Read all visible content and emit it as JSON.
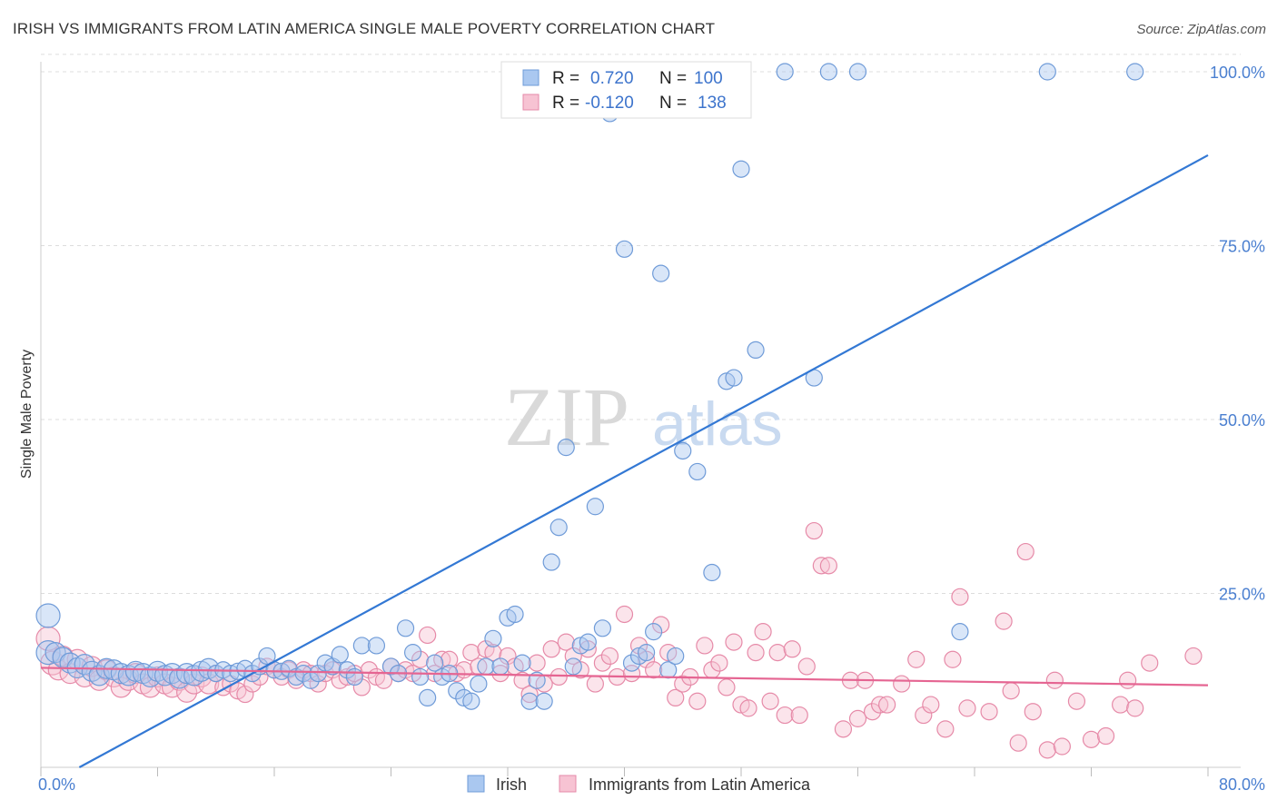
{
  "header": {
    "title": "IRISH VS IMMIGRANTS FROM LATIN AMERICA SINGLE MALE POVERTY CORRELATION CHART",
    "source": "Source: ZipAtlas.com"
  },
  "watermark": {
    "zip": "ZIP",
    "atlas": "atlas"
  },
  "colors": {
    "irish_fill": "#aac8f0",
    "irish_stroke": "#6f9bd8",
    "irish_line": "#3378d4",
    "latin_fill": "#f7c3d3",
    "latin_stroke": "#e68aa8",
    "latin_line": "#e56592",
    "tick_label": "#4a7fd0",
    "grid": "#dddddd"
  },
  "stats": {
    "irish": {
      "r_label": "R =",
      "r_value": "0.720",
      "n_label": "N =",
      "n_value": "100"
    },
    "latin": {
      "r_label": "R =",
      "r_value": "-0.120",
      "n_label": "N =",
      "n_value": "138"
    }
  },
  "chart_data": {
    "type": "scatter",
    "title": "IRISH VS IMMIGRANTS FROM LATIN AMERICA SINGLE MALE POVERTY CORRELATION CHART",
    "xlabel": "",
    "ylabel": "Single Male Poverty",
    "xlim": [
      0,
      80
    ],
    "ylim": [
      0,
      100
    ],
    "x_tick_labels": [
      "0.0%",
      "80.0%"
    ],
    "y_tick_labels": [
      "25.0%",
      "50.0%",
      "75.0%",
      "100.0%"
    ],
    "y_ticks": [
      25,
      50,
      75,
      100
    ],
    "grid": true,
    "legend_position": "bottom",
    "series": [
      {
        "name": "Irish",
        "trend": {
          "x": [
            0,
            80
          ],
          "y": [
            -3,
            88
          ]
        },
        "points": [
          [
            0.5,
            21.8
          ],
          [
            0.5,
            16.5
          ],
          [
            1,
            16.5
          ],
          [
            1.5,
            15.8
          ],
          [
            2,
            15
          ],
          [
            2.5,
            14.3
          ],
          [
            3,
            14.8
          ],
          [
            3.5,
            13.8
          ],
          [
            4,
            13.2
          ],
          [
            4.5,
            14.2
          ],
          [
            5,
            14
          ],
          [
            5.5,
            13.5
          ],
          [
            6,
            13.2
          ],
          [
            6.5,
            13.8
          ],
          [
            7,
            13.5
          ],
          [
            7.5,
            13
          ],
          [
            8,
            13.8
          ],
          [
            8.5,
            13.2
          ],
          [
            9,
            13.5
          ],
          [
            9.5,
            12.8
          ],
          [
            10,
            13.5
          ],
          [
            10.5,
            13.2
          ],
          [
            11,
            13.8
          ],
          [
            11.5,
            14.2
          ],
          [
            12,
            13.5
          ],
          [
            12.5,
            14
          ],
          [
            13,
            13.5
          ],
          [
            13.5,
            13.8
          ],
          [
            14,
            14.2
          ],
          [
            14.5,
            13.5
          ],
          [
            15,
            14.5
          ],
          [
            15.5,
            16
          ],
          [
            16,
            14
          ],
          [
            16.5,
            13.8
          ],
          [
            17,
            14.2
          ],
          [
            17.5,
            13
          ],
          [
            18,
            13.5
          ],
          [
            18.5,
            12.5
          ],
          [
            19,
            13.5
          ],
          [
            19.5,
            15
          ],
          [
            20,
            14.5
          ],
          [
            20.5,
            16.2
          ],
          [
            21,
            14
          ],
          [
            21.5,
            13
          ],
          [
            22,
            17.5
          ],
          [
            23,
            17.5
          ],
          [
            24,
            14.5
          ],
          [
            24.5,
            13.5
          ],
          [
            25,
            20
          ],
          [
            25.5,
            16.5
          ],
          [
            26,
            13
          ],
          [
            26.5,
            10
          ],
          [
            27,
            15
          ],
          [
            27.5,
            13
          ],
          [
            28,
            13.5
          ],
          [
            28.5,
            11
          ],
          [
            29,
            10
          ],
          [
            29.5,
            9.5
          ],
          [
            30,
            12
          ],
          [
            30.5,
            14.5
          ],
          [
            31,
            18.5
          ],
          [
            31.5,
            14.5
          ],
          [
            32,
            21.5
          ],
          [
            32.5,
            22
          ],
          [
            33,
            15
          ],
          [
            33.5,
            9.5
          ],
          [
            34,
            12.5
          ],
          [
            34.5,
            9.5
          ],
          [
            35,
            29.5
          ],
          [
            35.5,
            34.5
          ],
          [
            36,
            46
          ],
          [
            36.5,
            14.5
          ],
          [
            37,
            17.5
          ],
          [
            37.5,
            18
          ],
          [
            38,
            37.5
          ],
          [
            38.5,
            20
          ],
          [
            39,
            94
          ],
          [
            39.5,
            100
          ],
          [
            40,
            74.5
          ],
          [
            40.5,
            15
          ],
          [
            41,
            16
          ],
          [
            41.5,
            16.5
          ],
          [
            42,
            19.5
          ],
          [
            42.5,
            71
          ],
          [
            43,
            14
          ],
          [
            43.5,
            16
          ],
          [
            44,
            45.5
          ],
          [
            45,
            42.5
          ],
          [
            46,
            28
          ],
          [
            47,
            55.5
          ],
          [
            47.5,
            56
          ],
          [
            48,
            86
          ],
          [
            49,
            60
          ],
          [
            51,
            100
          ],
          [
            53,
            56
          ],
          [
            54,
            100
          ],
          [
            56,
            100
          ],
          [
            63,
            19.5
          ],
          [
            69,
            100
          ],
          [
            75,
            100
          ]
        ]
      },
      {
        "name": "Immigrants from Latin America",
        "trend": {
          "x": [
            0,
            80
          ],
          "y": [
            14.3,
            11.8
          ]
        },
        "points": [
          [
            0.5,
            18.5
          ],
          [
            0.8,
            15
          ],
          [
            1.2,
            14
          ],
          [
            1.5,
            16
          ],
          [
            2,
            13.5
          ],
          [
            2.5,
            15.5
          ],
          [
            3,
            13
          ],
          [
            3.5,
            14.5
          ],
          [
            4,
            12.5
          ],
          [
            4.5,
            14
          ],
          [
            5,
            13
          ],
          [
            5.5,
            11.5
          ],
          [
            6,
            12.5
          ],
          [
            6.5,
            13.5
          ],
          [
            7,
            12
          ],
          [
            7.5,
            11.5
          ],
          [
            8,
            13
          ],
          [
            8.5,
            12
          ],
          [
            9,
            11.5
          ],
          [
            9.5,
            12.5
          ],
          [
            10,
            10.8
          ],
          [
            10.5,
            12
          ],
          [
            11,
            13
          ],
          [
            11.5,
            12
          ],
          [
            12,
            13.5
          ],
          [
            12.5,
            11.5
          ],
          [
            13,
            12
          ],
          [
            13.5,
            11
          ],
          [
            14,
            10.5
          ],
          [
            14.5,
            12
          ],
          [
            15,
            13
          ],
          [
            15.5,
            14.5
          ],
          [
            16,
            14
          ],
          [
            16.5,
            13
          ],
          [
            17,
            14
          ],
          [
            17.5,
            12.5
          ],
          [
            18,
            14
          ],
          [
            18.5,
            13.5
          ],
          [
            19,
            12
          ],
          [
            19.5,
            13.5
          ],
          [
            20,
            14
          ],
          [
            20.5,
            12.5
          ],
          [
            21,
            13
          ],
          [
            21.5,
            13.5
          ],
          [
            22,
            11.5
          ],
          [
            22.5,
            14
          ],
          [
            23,
            13
          ],
          [
            23.5,
            12.5
          ],
          [
            24,
            14.5
          ],
          [
            24.5,
            13.5
          ],
          [
            25,
            14
          ],
          [
            25.5,
            13.5
          ],
          [
            26,
            15.5
          ],
          [
            26.5,
            19
          ],
          [
            27,
            13.5
          ],
          [
            27.5,
            15.5
          ],
          [
            28,
            15.5
          ],
          [
            28.5,
            13.5
          ],
          [
            29,
            14
          ],
          [
            29.5,
            16.5
          ],
          [
            30,
            14.5
          ],
          [
            30.5,
            17
          ],
          [
            31,
            16.5
          ],
          [
            31.5,
            13.5
          ],
          [
            32,
            16
          ],
          [
            32.5,
            14.5
          ],
          [
            33,
            12.5
          ],
          [
            33.5,
            10.5
          ],
          [
            34,
            15
          ],
          [
            34.5,
            12
          ],
          [
            35,
            17
          ],
          [
            35.5,
            13
          ],
          [
            36,
            18
          ],
          [
            36.5,
            16
          ],
          [
            37,
            14
          ],
          [
            37.5,
            17
          ],
          [
            38,
            12
          ],
          [
            38.5,
            15
          ],
          [
            39,
            16
          ],
          [
            39.5,
            13
          ],
          [
            40,
            22
          ],
          [
            40.5,
            13.5
          ],
          [
            41,
            17.5
          ],
          [
            41.5,
            15.5
          ],
          [
            42,
            14
          ],
          [
            42.5,
            20.5
          ],
          [
            43,
            16.5
          ],
          [
            43.5,
            10
          ],
          [
            44,
            12
          ],
          [
            44.5,
            13
          ],
          [
            45,
            9.5
          ],
          [
            45.5,
            17.5
          ],
          [
            46,
            14
          ],
          [
            46.5,
            15
          ],
          [
            47,
            11.5
          ],
          [
            47.5,
            18
          ],
          [
            48,
            9
          ],
          [
            48.5,
            8.5
          ],
          [
            49,
            16.5
          ],
          [
            49.5,
            19.5
          ],
          [
            50,
            9.5
          ],
          [
            50.5,
            16.5
          ],
          [
            51,
            7.5
          ],
          [
            51.5,
            17
          ],
          [
            52,
            7.5
          ],
          [
            52.5,
            14.5
          ],
          [
            53,
            34
          ],
          [
            53.5,
            29
          ],
          [
            54,
            29
          ],
          [
            55,
            5.5
          ],
          [
            55.5,
            12.5
          ],
          [
            56,
            7
          ],
          [
            56.5,
            12.5
          ],
          [
            57,
            8
          ],
          [
            57.5,
            9
          ],
          [
            58,
            9
          ],
          [
            59,
            12
          ],
          [
            60,
            15.5
          ],
          [
            60.5,
            7.5
          ],
          [
            61,
            9
          ],
          [
            62,
            5.5
          ],
          [
            62.5,
            15.5
          ],
          [
            63,
            24.5
          ],
          [
            63.5,
            8.5
          ],
          [
            65,
            8
          ],
          [
            66,
            21
          ],
          [
            66.5,
            11
          ],
          [
            67,
            3.5
          ],
          [
            67.5,
            31
          ],
          [
            68,
            8
          ],
          [
            69,
            2.5
          ],
          [
            69.5,
            12.5
          ],
          [
            70,
            3
          ],
          [
            71,
            9.5
          ],
          [
            72,
            4
          ],
          [
            73,
            4.5
          ],
          [
            74,
            9
          ],
          [
            74.5,
            12.5
          ],
          [
            75,
            8.5
          ],
          [
            76,
            15
          ],
          [
            79,
            16
          ]
        ]
      }
    ]
  }
}
